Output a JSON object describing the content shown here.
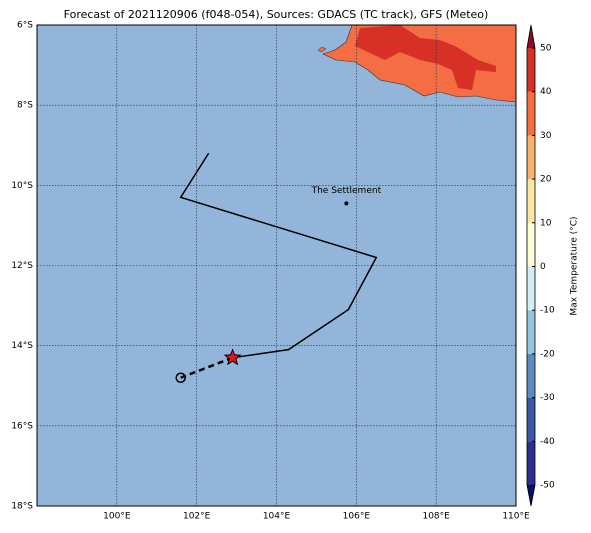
{
  "title": "Forecast of 2021120906 (f048-054), Sources: GDACS (TC track), GFS (Meteo)",
  "map": {
    "xlim": [
      98,
      110
    ],
    "ylim": [
      -18,
      -6
    ],
    "lon_ticks": [
      {
        "value": 100,
        "label": "100°E"
      },
      {
        "value": 102,
        "label": "102°E"
      },
      {
        "value": 104,
        "label": "104°E"
      },
      {
        "value": 106,
        "label": "106°E"
      },
      {
        "value": 108,
        "label": "108°E"
      },
      {
        "value": 110,
        "label": "110°E"
      }
    ],
    "lat_ticks": [
      {
        "value": -6,
        "label": "6°S"
      },
      {
        "value": -8,
        "label": "8°S"
      },
      {
        "value": -10,
        "label": "10°S"
      },
      {
        "value": -12,
        "label": "12°S"
      },
      {
        "value": -14,
        "label": "14°S"
      },
      {
        "value": -16,
        "label": "16°S"
      },
      {
        "value": -18,
        "label": "18°S"
      }
    ],
    "ocean_color": "#92b5d9"
  },
  "track": {
    "lon": [
      102.3,
      101.6,
      106.5,
      105.8,
      104.3,
      102.9
    ],
    "lat": [
      -9.2,
      -10.3,
      -11.8,
      -13.1,
      -14.1,
      -14.3
    ]
  },
  "forecast": {
    "lon": [
      102.9,
      101.6
    ],
    "lat": [
      -14.3,
      -14.8
    ]
  },
  "places": [
    {
      "name": "The Settlement",
      "lon": 105.75,
      "lat": -10.45
    }
  ],
  "colorbar": {
    "label": "Max Temperature (°C)",
    "ticks": [
      -50,
      -40,
      -30,
      -20,
      -10,
      0,
      10,
      20,
      30,
      40,
      50
    ],
    "colors": [
      "#2c2f8f",
      "#3b56a5",
      "#5b8cc0",
      "#93c4de",
      "#d4edf4",
      "#fffbd5",
      "#fde5a5",
      "#fcb070",
      "#f46d43",
      "#d73027"
    ],
    "under": "#0c0c6b",
    "over": "#8b0a26"
  }
}
